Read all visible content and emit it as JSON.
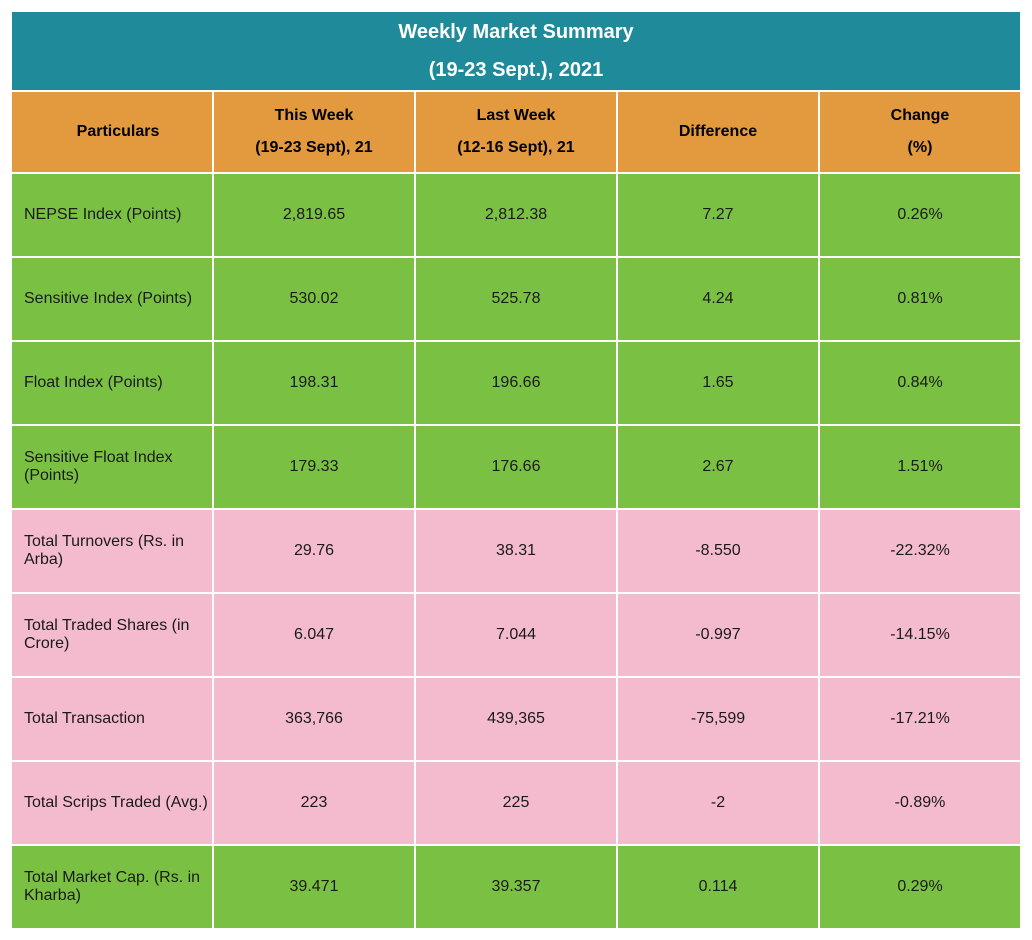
{
  "title": {
    "line1": "Weekly Market Summary",
    "line2": "(19-23 Sept.), 2021"
  },
  "headers": {
    "particulars": "Particulars",
    "thisweek_line1": "This Week",
    "thisweek_line2": "(19-23 Sept), 21",
    "lastweek_line1": "Last Week",
    "lastweek_line2": "(12-16 Sept), 21",
    "difference": "Difference",
    "change_line1": "Change",
    "change_line2": "(%)"
  },
  "rows": [
    {
      "particulars": "NEPSE Index (Points)",
      "thisweek": "2,819.65",
      "lastweek": "2,812.38",
      "difference": "7.27",
      "change": "0.26%",
      "color": "green"
    },
    {
      "particulars": "Sensitive Index (Points)",
      "thisweek": "530.02",
      "lastweek": "525.78",
      "difference": "4.24",
      "change": "0.81%",
      "color": "green"
    },
    {
      "particulars": "Float Index (Points)",
      "thisweek": "198.31",
      "lastweek": "196.66",
      "difference": "1.65",
      "change": "0.84%",
      "color": "green"
    },
    {
      "particulars": "Sensitive Float Index (Points)",
      "thisweek": "179.33",
      "lastweek": "176.66",
      "difference": "2.67",
      "change": "1.51%",
      "color": "green"
    },
    {
      "particulars": "Total Turnovers (Rs. in Arba)",
      "thisweek": "29.76",
      "lastweek": "38.31",
      "difference": "-8.550",
      "change": "-22.32%",
      "color": "pink"
    },
    {
      "particulars": "Total Traded Shares (in Crore)",
      "thisweek": "6.047",
      "lastweek": "7.044",
      "difference": "-0.997",
      "change": "-14.15%",
      "color": "pink"
    },
    {
      "particulars": "Total Transaction",
      "thisweek": "363,766",
      "lastweek": "439,365",
      "difference": "-75,599",
      "change": "-17.21%",
      "color": "pink"
    },
    {
      "particulars": "Total Scrips Traded (Avg.)",
      "thisweek": "223",
      "lastweek": "225",
      "difference": "-2",
      "change": "-0.89%",
      "color": "pink"
    },
    {
      "particulars": "Total Market Cap. (Rs. in Kharba)",
      "thisweek": "39.471",
      "lastweek": "39.357",
      "difference": "0.114",
      "change": "0.29%",
      "color": "green"
    }
  ],
  "styling": {
    "title_bg": "#1f8a9a",
    "title_fg": "#ffffff",
    "header_bg": "#e39a3e",
    "header_fg": "#000000",
    "row_green_bg": "#7ac143",
    "row_pink_bg": "#f4bbcf",
    "border_color": "#ffffff",
    "text_color": "#1a1a1a",
    "font_family": "Arial, sans-serif",
    "title_fontsize": 20,
    "header_fontsize": 16,
    "body_fontsize": 16
  }
}
